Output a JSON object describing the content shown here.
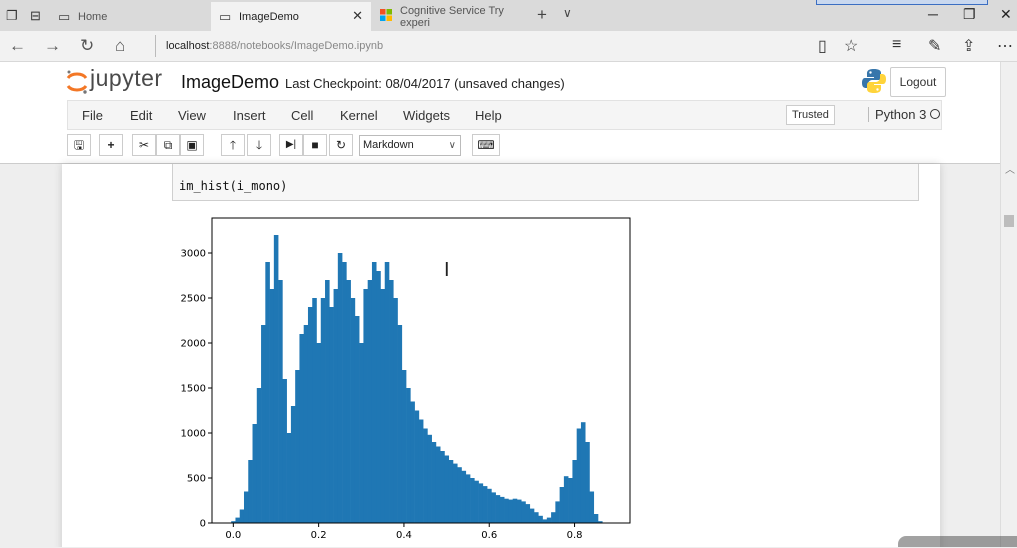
{
  "browser": {
    "tabs": [
      {
        "title": "Home",
        "icon": "page-icon"
      },
      {
        "title": "ImageDemo",
        "icon": "page-icon"
      },
      {
        "title": "Cognitive Service Try experi",
        "icon": "windows-logo-icon"
      }
    ],
    "url_host": "localhost",
    "url_path": ":8888/notebooks/ImageDemo.ipynb"
  },
  "jupyter": {
    "logo_text": "jupyter",
    "notebook_name": "ImageDemo",
    "checkpoint": "Last Checkpoint: 08/04/2017 (unsaved changes)",
    "logout_label": "Logout",
    "menu": [
      "File",
      "Edit",
      "View",
      "Insert",
      "Cell",
      "Kernel",
      "Widgets",
      "Help"
    ],
    "trusted_label": "Trusted",
    "kernel_name": "Python 3",
    "cell_type": "Markdown",
    "toolbar_icons": [
      "save-icon",
      "add-cell-icon",
      "cut-icon",
      "copy-icon",
      "paste-icon",
      "move-up-icon",
      "move-down-icon",
      "run-icon",
      "stop-icon",
      "restart-icon",
      "keyboard-icon"
    ]
  },
  "cell": {
    "code": "im_hist(i_mono)"
  },
  "colors": {
    "bar": "#1f77b4",
    "jupyter_orange": "#f37726"
  },
  "chart_data": {
    "type": "bar",
    "title": "",
    "xlabel": "",
    "ylabel": "",
    "xlim": [
      -0.05,
      0.93
    ],
    "ylim": [
      0,
      3000
    ],
    "x_ticks": [
      "0.0",
      "0.2",
      "0.4",
      "0.6",
      "0.8"
    ],
    "y_ticks": [
      "0",
      "500",
      "1000",
      "1500",
      "2000",
      "2500",
      "3000"
    ],
    "grid": false,
    "x": [
      0.0,
      0.01,
      0.02,
      0.03,
      0.04,
      0.05,
      0.06,
      0.07,
      0.08,
      0.09,
      0.1,
      0.11,
      0.12,
      0.13,
      0.14,
      0.15,
      0.16,
      0.17,
      0.18,
      0.19,
      0.2,
      0.21,
      0.22,
      0.23,
      0.24,
      0.25,
      0.26,
      0.27,
      0.28,
      0.29,
      0.3,
      0.31,
      0.32,
      0.33,
      0.34,
      0.35,
      0.36,
      0.37,
      0.38,
      0.39,
      0.4,
      0.41,
      0.42,
      0.43,
      0.44,
      0.45,
      0.46,
      0.47,
      0.48,
      0.49,
      0.5,
      0.51,
      0.52,
      0.53,
      0.54,
      0.55,
      0.56,
      0.57,
      0.58,
      0.59,
      0.6,
      0.61,
      0.62,
      0.63,
      0.64,
      0.65,
      0.66,
      0.67,
      0.68,
      0.69,
      0.7,
      0.71,
      0.72,
      0.73,
      0.74,
      0.75,
      0.76,
      0.77,
      0.78,
      0.79,
      0.8,
      0.81,
      0.82,
      0.83,
      0.84,
      0.85,
      0.86
    ],
    "values": [
      20,
      60,
      150,
      350,
      700,
      1100,
      1500,
      2200,
      2900,
      2600,
      3200,
      2700,
      1600,
      1000,
      1300,
      1700,
      2100,
      2200,
      2400,
      2500,
      2000,
      2500,
      2700,
      2400,
      2600,
      3000,
      2900,
      2700,
      2500,
      2300,
      2000,
      2600,
      2700,
      2900,
      2800,
      2600,
      2900,
      2700,
      2500,
      2200,
      1700,
      1500,
      1350,
      1250,
      1150,
      1050,
      980,
      900,
      850,
      800,
      750,
      700,
      660,
      620,
      580,
      540,
      500,
      470,
      440,
      410,
      380,
      340,
      310,
      290,
      270,
      260,
      270,
      260,
      240,
      210,
      160,
      120,
      80,
      40,
      60,
      120,
      240,
      400,
      520,
      500,
      700,
      1050,
      1120,
      900,
      350,
      100,
      20
    ]
  }
}
